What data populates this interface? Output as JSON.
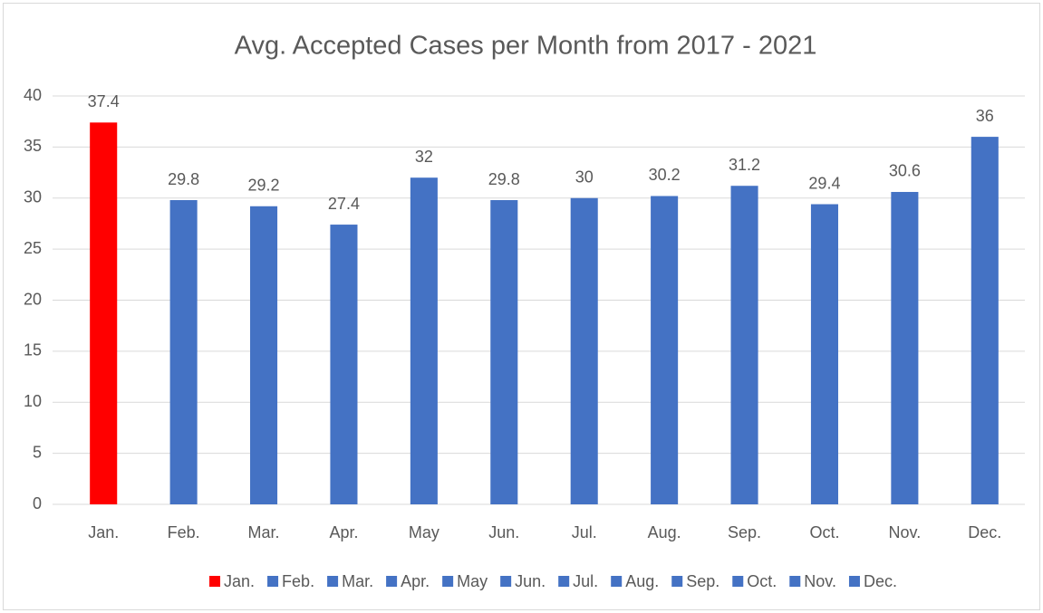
{
  "chart_data": {
    "type": "bar",
    "title": "Avg. Accepted Cases per Month from 2017 - 2021",
    "categories": [
      "Jan.",
      "Feb.",
      "Mar.",
      "Apr.",
      "May",
      "Jun.",
      "Jul.",
      "Aug.",
      "Sep.",
      "Oct.",
      "Nov.",
      "Dec."
    ],
    "values": [
      37.4,
      29.8,
      29.2,
      27.4,
      32,
      29.8,
      30,
      30.2,
      31.2,
      29.4,
      30.6,
      36
    ],
    "colors": [
      "#ff0000",
      "#4472c4",
      "#4472c4",
      "#4472c4",
      "#4472c4",
      "#4472c4",
      "#4472c4",
      "#4472c4",
      "#4472c4",
      "#4472c4",
      "#4472c4",
      "#4472c4"
    ],
    "ylim": [
      0,
      40
    ],
    "yticks": [
      0,
      5,
      10,
      15,
      20,
      25,
      30,
      35,
      40
    ],
    "grid": true,
    "legend": "bottom"
  }
}
